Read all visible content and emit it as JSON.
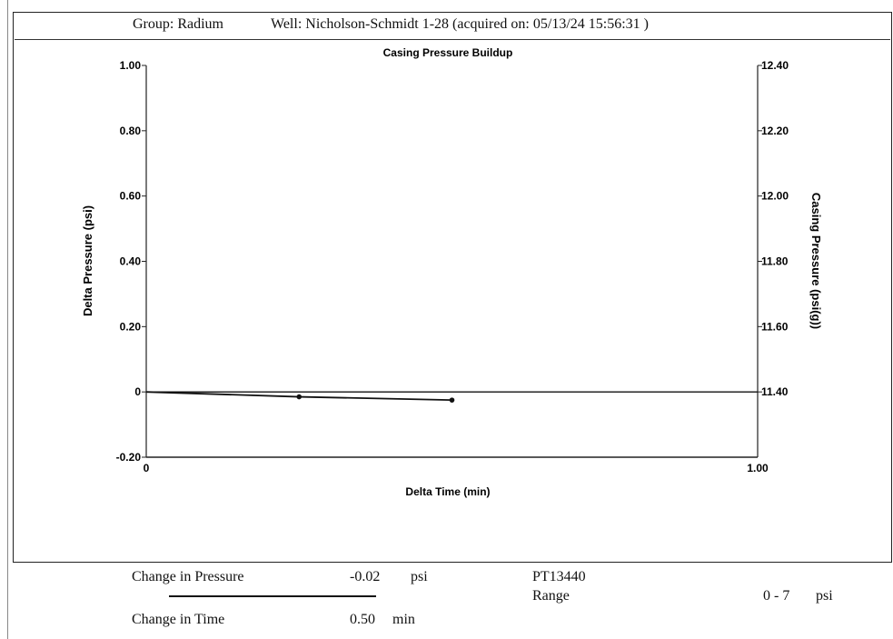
{
  "header": {
    "group": "Group: Radium",
    "well": "Well: Nicholson-Schmidt 1-28 (acquired on: 05/13/24 15:56:31 )"
  },
  "chart_data": {
    "type": "line",
    "title": "Casing Pressure Buildup",
    "xlabel": "Delta Time (min)",
    "ylabel": "Delta Pressure (psi)",
    "y2label": "Casing Pressure (psi(g))",
    "xlim": [
      0,
      1.0
    ],
    "ylim": [
      -0.2,
      1.0
    ],
    "y2lim": [
      11.2,
      12.4
    ],
    "x_ticks": [
      "0",
      "1.00"
    ],
    "y_ticks": [
      {
        "v": 1.0,
        "label": "1.00"
      },
      {
        "v": 0.8,
        "label": "0.80"
      },
      {
        "v": 0.6,
        "label": "0.60"
      },
      {
        "v": 0.4,
        "label": "0.40"
      },
      {
        "v": 0.2,
        "label": "0.20"
      },
      {
        "v": 0.0,
        "label": "0"
      },
      {
        "v": -0.2,
        "label": "-0.20"
      }
    ],
    "y2_ticks": [
      {
        "v": 12.4,
        "label": "12.40"
      },
      {
        "v": 12.2,
        "label": "12.20"
      },
      {
        "v": 12.0,
        "label": "12.00"
      },
      {
        "v": 11.8,
        "label": "11.80"
      },
      {
        "v": 11.6,
        "label": "11.60"
      },
      {
        "v": 11.4,
        "label": "11.40"
      }
    ],
    "series": [
      {
        "x": [
          0,
          0.25,
          0.5
        ],
        "values": [
          0.0,
          -0.015,
          -0.025
        ]
      }
    ],
    "grid": false
  },
  "footer": {
    "pressure_label": "Change in Pressure",
    "pressure_value": "-0.02",
    "pressure_unit": "psi",
    "time_label": "Change in Time",
    "time_value": "0.50",
    "time_unit": "min",
    "sensor_id": "PT13440",
    "range_label": "Range",
    "range_value": "0 - 7",
    "range_unit": "psi"
  }
}
